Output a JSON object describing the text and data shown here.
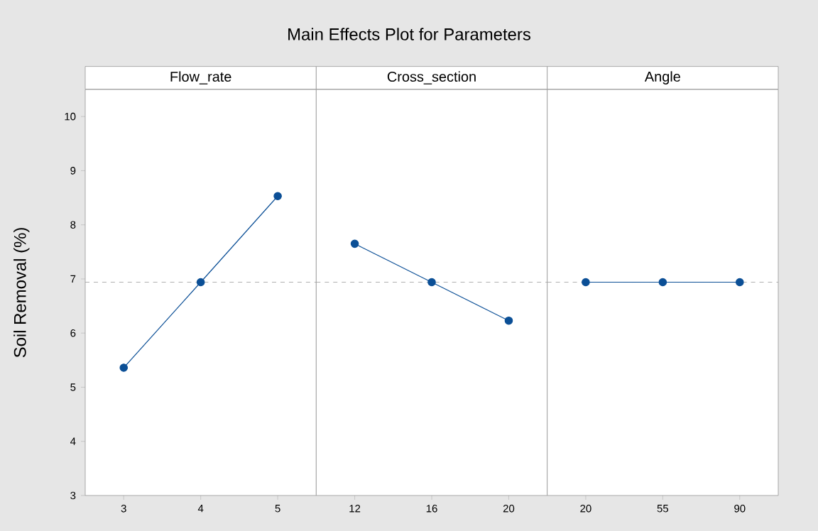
{
  "chart_data": [
    {
      "type": "line",
      "title": "Flow_rate",
      "annotations": [
        "Main Effects Plot for Parameters"
      ],
      "ylabel": "Soil Removal (%)",
      "categories": [
        "3",
        "4",
        "5"
      ],
      "values": [
        5.36,
        6.94,
        8.53
      ],
      "color": "#0b4f96",
      "marker": "circle",
      "ylim": [
        3,
        10.5
      ],
      "yticks": [
        3,
        4,
        5,
        6,
        7,
        8,
        9,
        10
      ],
      "ref_lines": [
        {
          "axis": "y",
          "value": 6.94,
          "color": "#999999",
          "line_style": "dashed"
        }
      ]
    },
    {
      "type": "line",
      "title": "Cross_section",
      "categories": [
        "12",
        "16",
        "20"
      ],
      "values": [
        7.65,
        6.94,
        6.23
      ],
      "color": "#0b4f96",
      "marker": "circle",
      "ylim": [
        3,
        10.5
      ],
      "tick_labels": "x",
      "ref_lines": [
        {
          "axis": "y",
          "value": 6.94,
          "color": "#999999",
          "line_style": "dashed"
        }
      ]
    },
    {
      "type": "line",
      "title": "Angle",
      "categories": [
        "20",
        "55",
        "90"
      ],
      "values": [
        6.94,
        6.94,
        6.94
      ],
      "color": "#0b4f96",
      "marker": "circle",
      "ylim": [
        3,
        10.5
      ],
      "tick_labels": "x",
      "ref_lines": [
        {
          "axis": "y",
          "value": 6.94,
          "color": "#999999",
          "line_style": "dashed"
        }
      ]
    }
  ]
}
